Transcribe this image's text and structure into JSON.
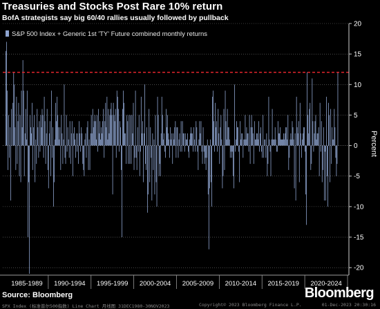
{
  "header": {
    "title": "Treasuries and Stocks Post Rare 10% return",
    "subtitle": "BofA strategists say big 60/40 rallies usually followed by pullback"
  },
  "footer": {
    "source": "Source: Bloomberg",
    "logo": "Bloomberg",
    "terminal_left": "SPX Index (标准普尔500指数) Line Chart   月线图 31DEC1980-30NOV2023",
    "terminal_center": "Copyright© 2023 Bloomberg Finance L.P.",
    "terminal_right": "01-Dec-2023 20:30:16"
  },
  "colors": {
    "background": "#000000",
    "bar": "#8ea4cf",
    "threshold": "#e5262d",
    "grid": "#7a7a7a",
    "text": "#ffffff"
  },
  "chart_data": {
    "type": "bar",
    "title": "Treasuries and Stocks Post Rare 10% return",
    "subtitle": "BofA strategists say big 60/40 rallies usually followed by pullback",
    "ylabel": "Percent",
    "ylim": [
      -21,
      20
    ],
    "yticks": [
      20,
      15,
      10,
      5,
      0,
      -5,
      -10,
      -15,
      -20
    ],
    "y_axis_side": "right",
    "grid": "horizontal dotted",
    "legend_position": "top-left",
    "legend": [
      "S&P 500 Index + Generic 1st 'TY' Future combined monthly returns"
    ],
    "x_period_labels": [
      "1985-1989",
      "1990-1994",
      "1995-1999",
      "2000-2004",
      "2005-2009",
      "2010-2014",
      "2015-2019",
      "2020-2024"
    ],
    "x_start": "1985-01",
    "x_end": "2023-11",
    "threshold_line": {
      "value": 12,
      "style": "dashed",
      "color": "#e5262d"
    },
    "series": [
      {
        "name": "S&P 500 Index + Generic 1st 'TY' Future combined monthly returns",
        "frequency": "monthly",
        "values": [
          15.5,
          17,
          9,
          -4,
          5,
          -2,
          3,
          -9,
          6,
          0,
          7,
          12,
          10,
          3,
          -4,
          8,
          -3,
          4,
          7,
          -5,
          5,
          -6,
          9,
          3,
          14,
          9,
          -5,
          2,
          6,
          1,
          9,
          -15,
          -6,
          -21,
          5,
          3,
          2,
          7,
          -4,
          3,
          5,
          -6,
          1,
          -3,
          6,
          3,
          -2,
          4,
          -1,
          5,
          3,
          6,
          5,
          -2,
          8,
          4,
          -3,
          2,
          6,
          -4,
          -7,
          2,
          4,
          -5,
          9,
          -2,
          3,
          -10,
          -6,
          1,
          7,
          4,
          8,
          5,
          3,
          1,
          3,
          -4,
          5,
          2,
          -3,
          1,
          10,
          -2,
          -3,
          5,
          -1,
          3,
          1,
          -2,
          4,
          -3,
          2,
          4,
          -5,
          2,
          3,
          1,
          -2,
          2,
          -1,
          2,
          -3,
          4,
          2,
          -1,
          3,
          2,
          -3,
          -4,
          -5,
          1,
          2,
          -2,
          3,
          4,
          -4,
          1,
          -4,
          2,
          5,
          2,
          6,
          3,
          4,
          5,
          4,
          1,
          5,
          -1,
          6,
          2,
          4,
          1,
          3,
          2,
          4,
          6,
          -2,
          4,
          7,
          3,
          8,
          1,
          6,
          2,
          5,
          6,
          7,
          5,
          -8,
          7,
          5,
          4,
          6,
          -2,
          9,
          8,
          6,
          -1,
          4,
          3,
          -4,
          -15,
          6,
          9,
          7,
          2,
          2,
          -3,
          5,
          4,
          -3,
          5,
          -3,
          5,
          -3,
          5,
          2,
          7,
          -4,
          -2,
          9,
          -2,
          -4,
          3,
          -1,
          5,
          -5,
          -1,
          8,
          2,
          4,
          -6,
          2,
          10,
          -3,
          -4,
          3,
          -11,
          -8,
          6,
          -6,
          3,
          -2,
          -9,
          2,
          -4,
          1,
          -8,
          5,
          -6,
          -10,
          8,
          5,
          -5,
          -3,
          -5,
          2,
          8,
          5,
          1,
          2,
          -1,
          -2,
          6,
          3,
          5,
          2,
          1,
          -2,
          3,
          1,
          2,
          -3,
          2,
          1,
          3,
          4,
          -2,
          3,
          3,
          -2,
          1,
          2,
          -1,
          4,
          -1,
          4,
          2,
          2,
          -1,
          2,
          1,
          1,
          2,
          -1,
          -2,
          1,
          2,
          3,
          2,
          2,
          -1,
          3,
          1,
          -1,
          4,
          3,
          -1,
          -4,
          1,
          4,
          2,
          4,
          -1,
          -3,
          3,
          -1,
          -3,
          -2,
          -4,
          -2,
          1,
          -8,
          -17,
          -7,
          1,
          -6,
          -10,
          8,
          9,
          4,
          -1,
          7,
          3,
          4,
          -1,
          6,
          2,
          -3,
          3,
          5,
          1,
          -7,
          -5,
          6,
          -4,
          9,
          4,
          1,
          6,
          3,
          3,
          1,
          -2,
          -1,
          -2,
          -1,
          -5,
          -7,
          10,
          -1,
          1,
          4,
          3,
          3,
          -1,
          -6,
          4,
          1,
          2,
          2,
          -2,
          1,
          1,
          5,
          1,
          3,
          2,
          2,
          -1,
          5,
          -3,
          3,
          5,
          3,
          2,
          -3,
          4,
          1,
          1,
          2,
          2,
          1,
          4,
          -1,
          2,
          3,
          -1,
          -2,
          5,
          -2,
          1,
          1,
          -2,
          2,
          -5,
          -3,
          8,
          1,
          -1,
          -5,
          1,
          6,
          1,
          1,
          1,
          3,
          1,
          -1,
          -1,
          4,
          2,
          2,
          3,
          1,
          1,
          1,
          1,
          2,
          1,
          2,
          3,
          3,
          1,
          5,
          -4,
          -2,
          1,
          2,
          1,
          4,
          3,
          1,
          -7,
          2,
          -9,
          8,
          3,
          2,
          4,
          -6,
          7,
          2,
          -2,
          1,
          2,
          3,
          3,
          -1,
          -8,
          -13,
          12,
          5,
          2,
          6,
          7,
          -4,
          -3,
          11,
          4,
          -1,
          2,
          4,
          5,
          1,
          2,
          2,
          3,
          -5,
          7,
          -1,
          4,
          -6,
          -4,
          3,
          -9,
          -1,
          -9,
          8,
          -5,
          -10,
          7,
          5,
          -6,
          6,
          -3,
          3,
          1,
          1,
          6,
          3,
          -2,
          -5,
          -3,
          12
        ]
      }
    ]
  }
}
